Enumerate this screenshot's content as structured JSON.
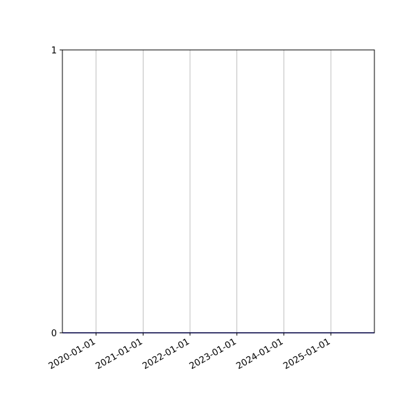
{
  "chart_data": {
    "type": "line",
    "title": "",
    "xlabel": "",
    "ylabel": "",
    "x_axis_type": "date",
    "xlim": [
      "2019-04-14",
      "2025-12-06"
    ],
    "ylim": [
      0,
      1
    ],
    "x_ticks": [
      "2020-01-01",
      "2021-01-01",
      "2022-01-01",
      "2023-01-01",
      "2024-01-01",
      "2025-01-01"
    ],
    "y_ticks": [
      "0",
      "1"
    ],
    "grid": "vertical lines at x ticks",
    "series": [
      {
        "x": [
          "2019-04-14",
          "2025-12-06"
        ],
        "y": [
          0,
          0
        ],
        "color": "#0000cc"
      }
    ],
    "colors": {
      "grid": "#b0b0b0",
      "axes": "#000000"
    }
  }
}
